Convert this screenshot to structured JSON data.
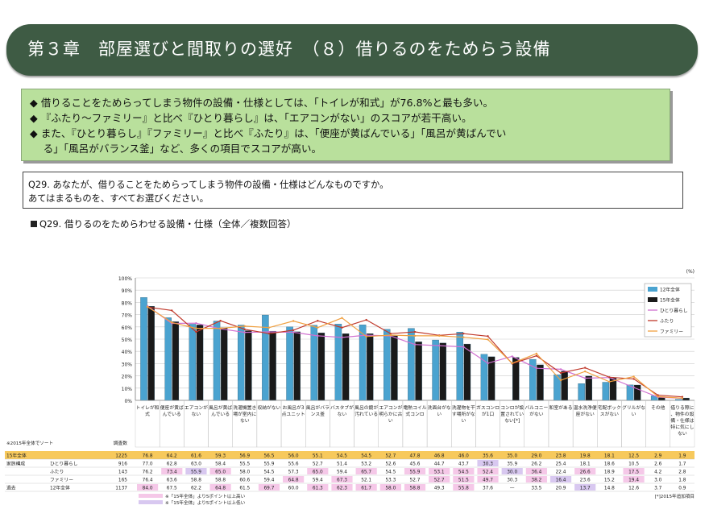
{
  "header": {
    "title": "第３章　部屋選びと間取りの選好　（８）借りるのをためらう設備"
  },
  "summary": {
    "lines": [
      "◆ 借りることをためらってしまう物件の設備・仕様としては、「トイレが和式」が76.8%と最も多い。",
      "◆ 『ふたり～ファミリー』と比べ『ひとり暮らし』は、「エアコンがない」のスコアが若干高い。",
      "◆ また、『ひとり暮らし』『ファミリー』と比べ『ふたり』は、「便座が黄ばんでいる」「風呂が黄ばんでい",
      "　 る」「風呂がバランス釜」など、多くの項目でスコアが高い。"
    ]
  },
  "question": {
    "line1": "Q29. あなたが、借りることをためらってしまう物件の設備・仕様はどんなものですか。",
    "line2": "あてはまるものを、すべてお選びください。"
  },
  "chart_title": "Q29. 借りるのをためらわせる設備・仕様（全体／複数回答）",
  "table": {
    "sort_note": "※2015年全体でソート",
    "n_header": "調査数",
    "rows": [
      {
        "group": "15年全体",
        "label": "",
        "n": "1225",
        "highlight": true
      },
      {
        "group": "家族構成",
        "label": "ひとり暮らし",
        "n": "916"
      },
      {
        "group": "",
        "label": "ふたり",
        "n": "143"
      },
      {
        "group": "",
        "label": "ファミリー",
        "n": "165"
      },
      {
        "group": "過去",
        "label": "12年全体",
        "n": "1137"
      }
    ],
    "footnote1": "※「15年全体」より5ポイント以上高い",
    "footnote2": "※「15年全体」より5ポイント以上低い",
    "footnote3": "[*]2015年追加項目"
  },
  "chart_data": {
    "type": "bar",
    "unit": "(%)",
    "ylim": [
      0,
      100
    ],
    "yticks": [
      "0%",
      "10%",
      "20%",
      "30%",
      "40%",
      "50%",
      "60%",
      "70%",
      "80%",
      "90%",
      "100%"
    ],
    "categories": [
      "トイレが和式",
      "便座が黄ばんでいる",
      "エアコンがない",
      "風呂が黄ばんでいる",
      "洗濯機置き場が室内にない",
      "収納がない",
      "お風呂が3点ユニット",
      "風呂がバランス釜",
      "バスタブがない",
      "風呂の鏡が汚れている",
      "エアコンが明らかに古い",
      "電熱コイル式コンロ",
      "洗面台がない",
      "洗濯物を干す場所がない",
      "ガスコンロが1口",
      "コンロが設置されていない[*]",
      "バルコニーがない",
      "和室がある",
      "温水洗浄便座がない",
      "宅配ボックスがない",
      "グリルがない",
      "その他",
      "借りる際に、物件の設備・仕様は特に気にしない"
    ],
    "series": [
      {
        "name": "12年全体",
        "kind": "bar",
        "color": "#4aa3d0",
        "values": [
          84.0,
          67.5,
          62.2,
          64.8,
          61.5,
          69.7,
          60.0,
          61.3,
          62.3,
          61.7,
          58.0,
          58.8,
          49.3,
          55.8,
          37.6,
          null,
          33.5,
          20.9,
          13.7,
          14.8,
          12.6,
          3.7,
          0.9
        ]
      },
      {
        "name": "15年全体",
        "kind": "bar",
        "color": "#1a1a1a",
        "values": [
          76.8,
          64.2,
          61.6,
          59.3,
          56.9,
          56.5,
          56.0,
          55.1,
          54.5,
          54.5,
          52.7,
          47.8,
          46.8,
          46.0,
          35.6,
          35.0,
          29.0,
          23.8,
          19.8,
          18.1,
          12.5,
          2.9,
          1.9
        ]
      },
      {
        "name": "ひとり暮らし",
        "kind": "line",
        "color": "#d070d0",
        "values": [
          77.0,
          62.8,
          63.0,
          58.4,
          55.5,
          55.9,
          55.6,
          52.7,
          51.4,
          53.2,
          52.6,
          45.6,
          44.7,
          43.7,
          30.3,
          35.9,
          26.2,
          25.4,
          18.1,
          18.6,
          10.5,
          2.6,
          1.7
        ]
      },
      {
        "name": "ふたり",
        "kind": "line",
        "color": "#c0392b",
        "values": [
          76.2,
          73.4,
          55.9,
          65.0,
          58.0,
          54.5,
          57.3,
          65.0,
          59.4,
          65.7,
          54.5,
          55.9,
          53.1,
          54.5,
          52.4,
          30.0,
          36.4,
          22.4,
          26.6,
          18.9,
          17.5,
          4.2,
          2.8
        ]
      },
      {
        "name": "ファミリー",
        "kind": "line",
        "color": "#f0a040",
        "values": [
          76.4,
          63.6,
          58.8,
          58.8,
          60.6,
          59.4,
          64.8,
          59.4,
          67.3,
          52.1,
          53.3,
          52.7,
          52.7,
          51.5,
          49.7,
          30.3,
          38.2,
          16.4,
          23.6,
          15.2,
          19.4,
          3.0,
          1.8
        ]
      }
    ]
  },
  "colors": {
    "header_bg": "#3e5b44",
    "summary_bg": "#b9e09c",
    "highlight_row": "#f7c95c",
    "high_cell": "#f5c8e8",
    "low_cell": "#d8c8f0"
  }
}
